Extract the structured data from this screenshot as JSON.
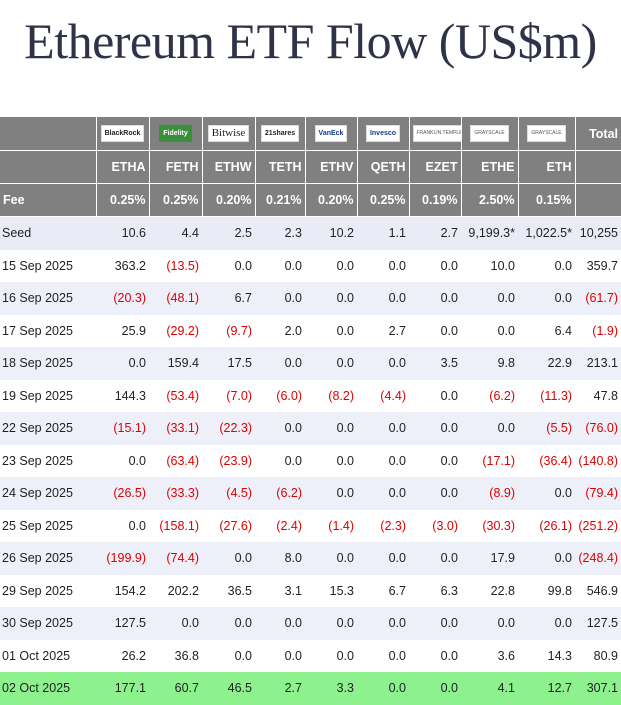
{
  "title": "Ethereum ETF Flow (US$m)",
  "colors": {
    "header_bg": "#808080",
    "negative": "#dd0000",
    "highlight_row": "#8df28d",
    "alt_row": "#eef0f9"
  },
  "table": {
    "total_label": "Total",
    "fee_label": "Fee",
    "funds": [
      {
        "logo": "BlackRock",
        "ticker": "ETHA",
        "fee": "0.25%"
      },
      {
        "logo": "Fidelity",
        "ticker": "FETH",
        "fee": "0.25%"
      },
      {
        "logo": "Bitwise",
        "ticker": "ETHW",
        "fee": "0.20%"
      },
      {
        "logo": "21shares",
        "ticker": "TETH",
        "fee": "0.21%"
      },
      {
        "logo": "VanEck",
        "ticker": "ETHV",
        "fee": "0.20%"
      },
      {
        "logo": "Invesco",
        "ticker": "QETH",
        "fee": "0.25%"
      },
      {
        "logo": "FRANKLIN TEMPLETON",
        "ticker": "EZET",
        "fee": "0.19%"
      },
      {
        "logo": "GRAYSCALE",
        "ticker": "ETHE",
        "fee": "2.50%"
      },
      {
        "logo": "GRAYSCALE",
        "ticker": "ETH",
        "fee": "0.15%"
      }
    ],
    "rows": [
      {
        "date": "Seed",
        "cells": [
          "10.6",
          "4.4",
          "2.5",
          "2.3",
          "10.2",
          "1.1",
          "2.7",
          "9,199.3*",
          "1,022.5*",
          "10,255"
        ]
      },
      {
        "date": "15 Sep 2025",
        "cells": [
          "363.2",
          "(13.5)",
          "0.0",
          "0.0",
          "0.0",
          "0.0",
          "0.0",
          "10.0",
          "0.0",
          "359.7"
        ]
      },
      {
        "date": "16 Sep 2025",
        "cells": [
          "(20.3)",
          "(48.1)",
          "6.7",
          "0.0",
          "0.0",
          "0.0",
          "0.0",
          "0.0",
          "0.0",
          "(61.7)"
        ]
      },
      {
        "date": "17 Sep 2025",
        "cells": [
          "25.9",
          "(29.2)",
          "(9.7)",
          "2.0",
          "0.0",
          "2.7",
          "0.0",
          "0.0",
          "6.4",
          "(1.9)"
        ]
      },
      {
        "date": "18 Sep 2025",
        "cells": [
          "0.0",
          "159.4",
          "17.5",
          "0.0",
          "0.0",
          "0.0",
          "3.5",
          "9.8",
          "22.9",
          "213.1"
        ]
      },
      {
        "date": "19 Sep 2025",
        "cells": [
          "144.3",
          "(53.4)",
          "(7.0)",
          "(6.0)",
          "(8.2)",
          "(4.4)",
          "0.0",
          "(6.2)",
          "(11.3)",
          "47.8"
        ]
      },
      {
        "date": "22 Sep 2025",
        "cells": [
          "(15.1)",
          "(33.1)",
          "(22.3)",
          "0.0",
          "0.0",
          "0.0",
          "0.0",
          "0.0",
          "(5.5)",
          "(76.0)"
        ]
      },
      {
        "date": "23 Sep 2025",
        "cells": [
          "0.0",
          "(63.4)",
          "(23.9)",
          "0.0",
          "0.0",
          "0.0",
          "0.0",
          "(17.1)",
          "(36.4)",
          "(140.8)"
        ]
      },
      {
        "date": "24 Sep 2025",
        "cells": [
          "(26.5)",
          "(33.3)",
          "(4.5)",
          "(6.2)",
          "0.0",
          "0.0",
          "0.0",
          "(8.9)",
          "0.0",
          "(79.4)"
        ]
      },
      {
        "date": "25 Sep 2025",
        "cells": [
          "0.0",
          "(158.1)",
          "(27.6)",
          "(2.4)",
          "(1.4)",
          "(2.3)",
          "(3.0)",
          "(30.3)",
          "(26.1)",
          "(251.2)"
        ]
      },
      {
        "date": "26 Sep 2025",
        "cells": [
          "(199.9)",
          "(74.4)",
          "0.0",
          "8.0",
          "0.0",
          "0.0",
          "0.0",
          "17.9",
          "0.0",
          "(248.4)"
        ]
      },
      {
        "date": "29 Sep 2025",
        "cells": [
          "154.2",
          "202.2",
          "36.5",
          "3.1",
          "15.3",
          "6.7",
          "6.3",
          "22.8",
          "99.8",
          "546.9"
        ]
      },
      {
        "date": "30 Sep 2025",
        "cells": [
          "127.5",
          "0.0",
          "0.0",
          "0.0",
          "0.0",
          "0.0",
          "0.0",
          "0.0",
          "0.0",
          "127.5"
        ]
      },
      {
        "date": "01 Oct 2025",
        "cells": [
          "26.2",
          "36.8",
          "0.0",
          "0.0",
          "0.0",
          "0.0",
          "0.0",
          "3.6",
          "14.3",
          "80.9"
        ]
      },
      {
        "date": "02 Oct 2025",
        "cells": [
          "177.1",
          "60.7",
          "46.5",
          "2.7",
          "3.3",
          "0.0",
          "0.0",
          "4.1",
          "12.7",
          "307.1"
        ]
      }
    ]
  },
  "chart_data": {
    "type": "table",
    "title": "Ethereum ETF Flow (US$m)",
    "columns": [
      "ETHA",
      "FETH",
      "ETHW",
      "TETH",
      "ETHV",
      "QETH",
      "EZET",
      "ETHE",
      "ETH",
      "Total"
    ],
    "fees": [
      "0.25%",
      "0.25%",
      "0.20%",
      "0.21%",
      "0.20%",
      "0.25%",
      "0.19%",
      "2.50%",
      "0.15%"
    ],
    "rows": [
      {
        "date": "Seed",
        "values": [
          10.6,
          4.4,
          2.5,
          2.3,
          10.2,
          1.1,
          2.7,
          9199.3,
          1022.5,
          10255
        ]
      },
      {
        "date": "15 Sep 2025",
        "values": [
          363.2,
          -13.5,
          0.0,
          0.0,
          0.0,
          0.0,
          0.0,
          10.0,
          0.0,
          359.7
        ]
      },
      {
        "date": "16 Sep 2025",
        "values": [
          -20.3,
          -48.1,
          6.7,
          0.0,
          0.0,
          0.0,
          0.0,
          0.0,
          0.0,
          -61.7
        ]
      },
      {
        "date": "17 Sep 2025",
        "values": [
          25.9,
          -29.2,
          -9.7,
          2.0,
          0.0,
          2.7,
          0.0,
          0.0,
          6.4,
          -1.9
        ]
      },
      {
        "date": "18 Sep 2025",
        "values": [
          0.0,
          159.4,
          17.5,
          0.0,
          0.0,
          0.0,
          3.5,
          9.8,
          22.9,
          213.1
        ]
      },
      {
        "date": "19 Sep 2025",
        "values": [
          144.3,
          -53.4,
          -7.0,
          -6.0,
          -8.2,
          -4.4,
          0.0,
          -6.2,
          -11.3,
          47.8
        ]
      },
      {
        "date": "22 Sep 2025",
        "values": [
          -15.1,
          -33.1,
          -22.3,
          0.0,
          0.0,
          0.0,
          0.0,
          0.0,
          -5.5,
          -76.0
        ]
      },
      {
        "date": "23 Sep 2025",
        "values": [
          0.0,
          -63.4,
          -23.9,
          0.0,
          0.0,
          0.0,
          0.0,
          -17.1,
          -36.4,
          -140.8
        ]
      },
      {
        "date": "24 Sep 2025",
        "values": [
          -26.5,
          -33.3,
          -4.5,
          -6.2,
          0.0,
          0.0,
          0.0,
          -8.9,
          0.0,
          -79.4
        ]
      },
      {
        "date": "25 Sep 2025",
        "values": [
          0.0,
          -158.1,
          -27.6,
          -2.4,
          -1.4,
          -2.3,
          -3.0,
          -30.3,
          -26.1,
          -251.2
        ]
      },
      {
        "date": "26 Sep 2025",
        "values": [
          -199.9,
          -74.4,
          0.0,
          8.0,
          0.0,
          0.0,
          0.0,
          17.9,
          0.0,
          -248.4
        ]
      },
      {
        "date": "29 Sep 2025",
        "values": [
          154.2,
          202.2,
          36.5,
          3.1,
          15.3,
          6.7,
          6.3,
          22.8,
          99.8,
          546.9
        ]
      },
      {
        "date": "30 Sep 2025",
        "values": [
          127.5,
          0.0,
          0.0,
          0.0,
          0.0,
          0.0,
          0.0,
          0.0,
          0.0,
          127.5
        ]
      },
      {
        "date": "01 Oct 2025",
        "values": [
          26.2,
          36.8,
          0.0,
          0.0,
          0.0,
          0.0,
          0.0,
          3.6,
          14.3,
          80.9
        ]
      },
      {
        "date": "02 Oct 2025",
        "values": [
          177.1,
          60.7,
          46.5,
          2.7,
          3.3,
          0.0,
          0.0,
          4.1,
          12.7,
          307.1
        ]
      }
    ]
  }
}
